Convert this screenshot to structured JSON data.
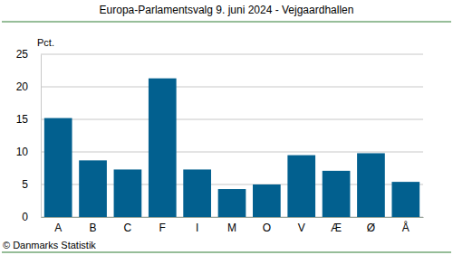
{
  "chart_data": {
    "type": "bar",
    "title": "Europa-Parlamentsvalg 9. juni 2024 - Vejgaardhallen",
    "y_label": "Pct.",
    "source": "© Danmarks Statistik",
    "categories": [
      "A",
      "B",
      "C",
      "F",
      "I",
      "M",
      "O",
      "V",
      "Æ",
      "Ø",
      "Å"
    ],
    "values": [
      15.2,
      8.7,
      7.3,
      21.3,
      7.3,
      4.3,
      5.0,
      9.5,
      7.1,
      9.8,
      5.4
    ],
    "color": "#02608f",
    "ylim": [
      0,
      25
    ],
    "yticks": [
      0,
      5,
      10,
      15,
      20,
      25
    ],
    "grid": true
  }
}
